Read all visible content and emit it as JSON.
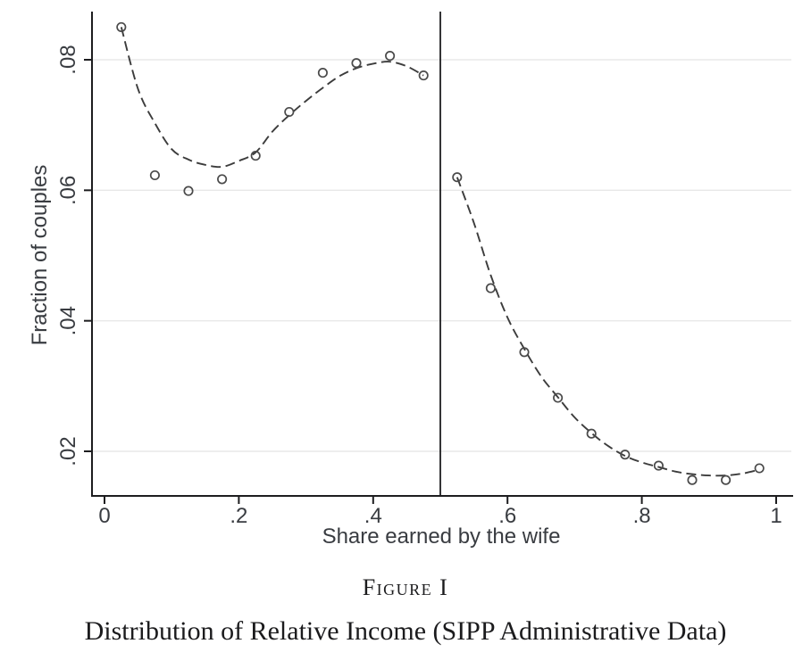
{
  "caption": {
    "label": "Figure I",
    "title": "Distribution of Relative Income (SIPP Administrative Data)"
  },
  "chart_data": {
    "type": "scatter",
    "title": "",
    "xlabel": "Share earned by the wife",
    "ylabel": "Fraction of couples",
    "xlim": [
      0,
      1
    ],
    "ylim": [
      0.013,
      0.088
    ],
    "grid": "horizontal-only",
    "legend": "none",
    "marker_style": "hollow-circle",
    "fit_style": "dashed-local-polynomial",
    "bin_width": 0.05,
    "vline_x": 0.5,
    "xticks": [
      {
        "value": 0,
        "label": "0"
      },
      {
        "value": 0.2,
        "label": ".2"
      },
      {
        "value": 0.4,
        "label": ".4"
      },
      {
        "value": 0.6,
        "label": ".6"
      },
      {
        "value": 0.8,
        "label": ".8"
      },
      {
        "value": 1,
        "label": "1"
      }
    ],
    "yticks": [
      {
        "value": 0.02,
        "label": ".02"
      },
      {
        "value": 0.04,
        "label": ".04"
      },
      {
        "value": 0.06,
        "label": ".06"
      },
      {
        "value": 0.08,
        "label": ".08"
      }
    ],
    "points": [
      [
        0.025,
        0.085
      ],
      [
        0.075,
        0.0623
      ],
      [
        0.125,
        0.0599
      ],
      [
        0.175,
        0.0617
      ],
      [
        0.225,
        0.0653
      ],
      [
        0.275,
        0.072
      ],
      [
        0.325,
        0.078
      ],
      [
        0.375,
        0.0795
      ],
      [
        0.425,
        0.0806
      ],
      [
        0.475,
        0.0776
      ],
      [
        0.525,
        0.062
      ],
      [
        0.575,
        0.045
      ],
      [
        0.625,
        0.0352
      ],
      [
        0.675,
        0.0282
      ],
      [
        0.725,
        0.0227
      ],
      [
        0.775,
        0.0195
      ],
      [
        0.825,
        0.0178
      ],
      [
        0.875,
        0.0156
      ],
      [
        0.925,
        0.0156
      ],
      [
        0.975,
        0.0174
      ]
    ],
    "fit_left": [
      [
        0.025,
        0.085
      ],
      [
        0.05,
        0.0755
      ],
      [
        0.075,
        0.0703
      ],
      [
        0.1,
        0.0663
      ],
      [
        0.125,
        0.0647
      ],
      [
        0.15,
        0.0639
      ],
      [
        0.175,
        0.0636
      ],
      [
        0.2,
        0.0645
      ],
      [
        0.225,
        0.0658
      ],
      [
        0.25,
        0.069
      ],
      [
        0.275,
        0.0715
      ],
      [
        0.3,
        0.0737
      ],
      [
        0.325,
        0.0757
      ],
      [
        0.35,
        0.0775
      ],
      [
        0.375,
        0.0787
      ],
      [
        0.4,
        0.0794
      ],
      [
        0.425,
        0.0797
      ],
      [
        0.45,
        0.079
      ],
      [
        0.475,
        0.0776
      ]
    ],
    "fit_right": [
      [
        0.525,
        0.062
      ],
      [
        0.55,
        0.055
      ],
      [
        0.575,
        0.047
      ],
      [
        0.6,
        0.0405
      ],
      [
        0.625,
        0.0357
      ],
      [
        0.65,
        0.0315
      ],
      [
        0.675,
        0.0283
      ],
      [
        0.7,
        0.0252
      ],
      [
        0.725,
        0.0228
      ],
      [
        0.75,
        0.0208
      ],
      [
        0.775,
        0.0193
      ],
      [
        0.8,
        0.0183
      ],
      [
        0.825,
        0.0176
      ],
      [
        0.85,
        0.0169
      ],
      [
        0.875,
        0.0165
      ],
      [
        0.9,
        0.0163
      ],
      [
        0.925,
        0.0163
      ],
      [
        0.95,
        0.0166
      ],
      [
        0.975,
        0.0172
      ]
    ],
    "colors": {
      "axis": "#1d1d1f",
      "grid": "#e8e8e8",
      "line": "#3c3c3c",
      "marker": "#4a4a4a",
      "tick_label": "#393c41"
    }
  }
}
